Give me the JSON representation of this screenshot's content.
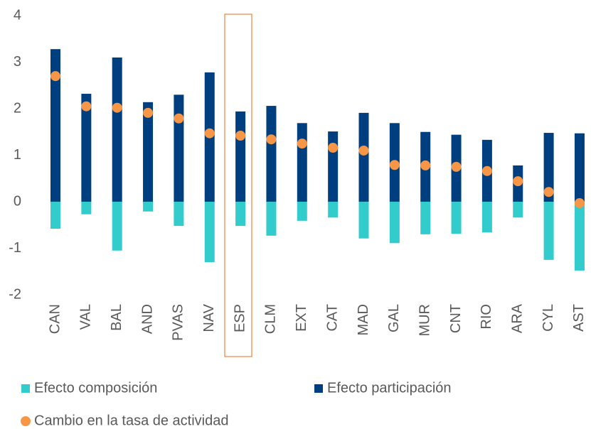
{
  "chart_data": {
    "type": "bar",
    "categories": [
      "CAN",
      "VAL",
      "BAL",
      "AND",
      "PVAS",
      "NAV",
      "ESP",
      "CLM",
      "EXT",
      "CAT",
      "MAD",
      "GAL",
      "MUR",
      "CNT",
      "RIO",
      "ARA",
      "CYL",
      "AST"
    ],
    "series": [
      {
        "name": "Efecto composición",
        "color": "#33cccc",
        "type": "bar",
        "values": [
          -0.58,
          -0.27,
          -1.05,
          -0.21,
          -0.52,
          -1.3,
          -0.52,
          -0.73,
          -0.41,
          -0.34,
          -0.79,
          -0.89,
          -0.7,
          -0.69,
          -0.66,
          -0.34,
          -1.25,
          -1.48
        ]
      },
      {
        "name": "Efecto participación",
        "color": "#003f7f",
        "type": "bar",
        "values": [
          3.28,
          2.32,
          3.1,
          2.14,
          2.3,
          2.78,
          1.94,
          2.06,
          1.69,
          1.51,
          1.91,
          1.69,
          1.5,
          1.44,
          1.33,
          0.78,
          1.48,
          1.47
        ]
      },
      {
        "name": "Cambio en la tasa de actividad",
        "color": "#f79646",
        "type": "scatter",
        "values": [
          2.7,
          2.05,
          2.02,
          1.91,
          1.79,
          1.47,
          1.42,
          1.34,
          1.25,
          1.16,
          1.1,
          0.79,
          0.78,
          0.75,
          0.66,
          0.44,
          0.21,
          -0.03
        ]
      }
    ],
    "ylim": [
      -2,
      4
    ],
    "yticks": [
      -2,
      -1,
      0,
      1,
      2,
      3,
      4
    ],
    "grid": false
  }
}
